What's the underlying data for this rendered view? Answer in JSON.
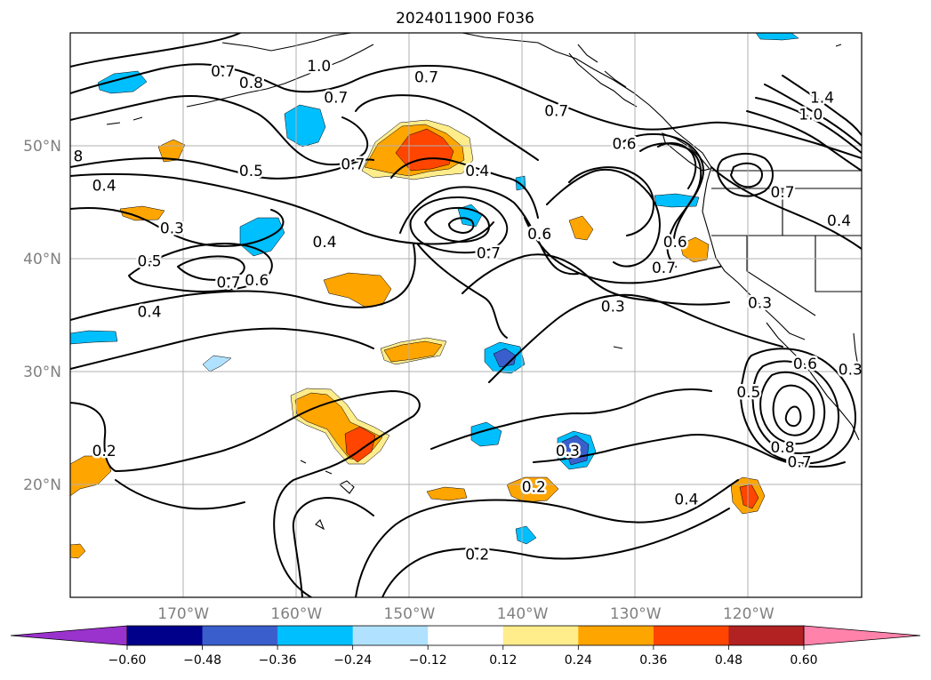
{
  "title": "2024011900 F036",
  "map": {
    "lon_range": [
      -180,
      -110
    ],
    "lat_range": [
      10,
      60
    ],
    "lon_ticks": [
      {
        "lon": -170,
        "label": "170°W"
      },
      {
        "lon": -160,
        "label": "160°W"
      },
      {
        "lon": -150,
        "label": "150°W"
      },
      {
        "lon": -140,
        "label": "140°W"
      },
      {
        "lon": -130,
        "label": "130°W"
      },
      {
        "lon": -120,
        "label": "120°W"
      }
    ],
    "lat_ticks": [
      {
        "lat": 20,
        "label": "20°N"
      },
      {
        "lat": 30,
        "label": "30°N"
      },
      {
        "lat": 40,
        "label": "40°N"
      },
      {
        "lat": 50,
        "label": "50°N"
      }
    ],
    "grid": true
  },
  "colorbar": {
    "levels": [
      "−0.60",
      "−0.48",
      "−0.36",
      "−0.24",
      "−0.12",
      "0.12",
      "0.24",
      "0.36",
      "0.48",
      "0.60"
    ],
    "colors": [
      "#9a32cd",
      "#00008b",
      "#3a5fcd",
      "#00bfff",
      "#b0e2ff",
      "#ffffff",
      "#ffec8b",
      "#ffa500",
      "#ff4500",
      "#b22222",
      "#ff82ab"
    ],
    "extend": "both"
  },
  "contour_labels": [
    {
      "text": "0.7",
      "lon": -166.5,
      "lat": 56.6
    },
    {
      "text": "0.8",
      "lon": -164.0,
      "lat": 55.6
    },
    {
      "text": "1.0",
      "lon": -158.0,
      "lat": 57.1
    },
    {
      "text": "0.7",
      "lon": -156.5,
      "lat": 54.3
    },
    {
      "text": "0.7",
      "lon": -148.5,
      "lat": 56.1
    },
    {
      "text": "0.7",
      "lon": -137.0,
      "lat": 53.1
    },
    {
      "text": "0.6",
      "lon": -131.0,
      "lat": 50.2
    },
    {
      "text": "1.4",
      "lon": -113.5,
      "lat": 54.3
    },
    {
      "text": "1.0",
      "lon": -114.5,
      "lat": 52.8
    },
    {
      "text": "8",
      "lon": -179.3,
      "lat": 49.1
    },
    {
      "text": "0.5",
      "lon": -164.0,
      "lat": 47.8
    },
    {
      "text": "0.4",
      "lon": -177.0,
      "lat": 46.5
    },
    {
      "text": "0.7",
      "lon": -155.0,
      "lat": 48.4
    },
    {
      "text": "0.4",
      "lon": -144.0,
      "lat": 47.8
    },
    {
      "text": "0.7",
      "lon": -117.0,
      "lat": 45.9
    },
    {
      "text": "0.4",
      "lon": -112.0,
      "lat": 43.4
    },
    {
      "text": "0.3",
      "lon": -171.0,
      "lat": 42.7
    },
    {
      "text": "0.4",
      "lon": -157.5,
      "lat": 41.5
    },
    {
      "text": "0.7",
      "lon": -143.0,
      "lat": 40.5
    },
    {
      "text": "0.6",
      "lon": -138.5,
      "lat": 42.2
    },
    {
      "text": "0.6",
      "lon": -126.5,
      "lat": 41.5
    },
    {
      "text": "0.7",
      "lon": -127.5,
      "lat": 39.2
    },
    {
      "text": "0.5",
      "lon": -173.0,
      "lat": 39.8
    },
    {
      "text": "0.7",
      "lon": -166.0,
      "lat": 37.9
    },
    {
      "text": "0.6",
      "lon": -163.5,
      "lat": 38.1
    },
    {
      "text": "0.4",
      "lon": -173.0,
      "lat": 35.3
    },
    {
      "text": "0.3",
      "lon": -132.0,
      "lat": 35.8
    },
    {
      "text": "0.3",
      "lon": -119.0,
      "lat": 36.1
    },
    {
      "text": "0.6",
      "lon": -115.0,
      "lat": 30.7
    },
    {
      "text": "0.3",
      "lon": -111.0,
      "lat": 30.2
    },
    {
      "text": "0.5",
      "lon": -120.0,
      "lat": 28.2
    },
    {
      "text": "0.8",
      "lon": -117.0,
      "lat": 23.3
    },
    {
      "text": "0.7",
      "lon": -115.5,
      "lat": 22.0
    },
    {
      "text": "0.2",
      "lon": -177.0,
      "lat": 23.0
    },
    {
      "text": "0.3",
      "lon": -136.0,
      "lat": 23.0
    },
    {
      "text": "0.2",
      "lon": -139.0,
      "lat": 19.8
    },
    {
      "text": "0.4",
      "lon": -125.5,
      "lat": 18.7
    },
    {
      "text": "0.2",
      "lon": -144.0,
      "lat": 13.8
    }
  ]
}
